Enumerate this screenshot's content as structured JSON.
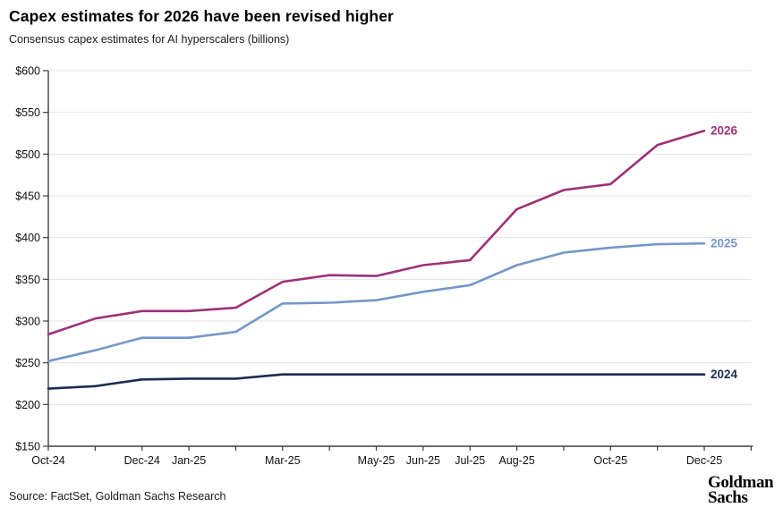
{
  "header": {
    "title": "Capex estimates for 2026 have been revised higher",
    "subtitle": "Consensus capex estimates for AI hyperscalers (billions)"
  },
  "footer": {
    "source": "Source: FactSet, Goldman Sachs Research",
    "logo_line1": "Goldman",
    "logo_line2": "Sachs"
  },
  "colors": {
    "series_2026": "#9c3179",
    "series_2025": "#7596c9",
    "series_2024": "#1a2d52",
    "gridline": "#e2e2e2",
    "axis": "#3f3f3f",
    "tick_label": "#111111"
  },
  "chart_data": {
    "type": "line",
    "title": "Capex estimates for 2026 have been revised higher",
    "subtitle": "Consensus capex estimates for AI hyperscalers (billions)",
    "x": [
      "Oct-24",
      "Nov-24",
      "Dec-24",
      "Jan-25",
      "Feb-25",
      "Mar-25",
      "Apr-25",
      "May-25",
      "Jun-25",
      "Jul-25",
      "Aug-25",
      "Sep-25",
      "Oct-25",
      "Nov-25",
      "Dec-25"
    ],
    "x_labels_shown": [
      {
        "index": 0,
        "label": "Oct-24"
      },
      {
        "index": 2,
        "label": "Dec-24"
      },
      {
        "index": 3,
        "label": "Jan-25"
      },
      {
        "index": 5,
        "label": "Mar-25"
      },
      {
        "index": 7,
        "label": "May-25"
      },
      {
        "index": 8,
        "label": "Jun-25"
      },
      {
        "index": 9,
        "label": "Jul-25"
      },
      {
        "index": 10,
        "label": "Aug-25"
      },
      {
        "index": 12,
        "label": "Oct-25"
      },
      {
        "index": 14,
        "label": "Dec-25"
      }
    ],
    "series": [
      {
        "name": "2026",
        "color": "#9c3179",
        "values": [
          284,
          303,
          312,
          312,
          316,
          347,
          355,
          354,
          367,
          373,
          434,
          457,
          464,
          511,
          528
        ]
      },
      {
        "name": "2025",
        "color": "#7596c9",
        "values": [
          252,
          265,
          280,
          280,
          287,
          321,
          322,
          325,
          335,
          343,
          367,
          382,
          388,
          392,
          393
        ]
      },
      {
        "name": "2024",
        "color": "#1a2d52",
        "values": [
          219,
          222,
          230,
          231,
          231,
          236,
          236,
          236,
          236,
          236,
          236,
          236,
          236,
          236,
          236
        ]
      }
    ],
    "ylabel": "",
    "xlabel": "",
    "ylim": [
      150,
      600
    ],
    "ytick_step": 50,
    "ytick_prefix": "$",
    "grid": "horizontal",
    "legend_position": "end-of-line"
  }
}
